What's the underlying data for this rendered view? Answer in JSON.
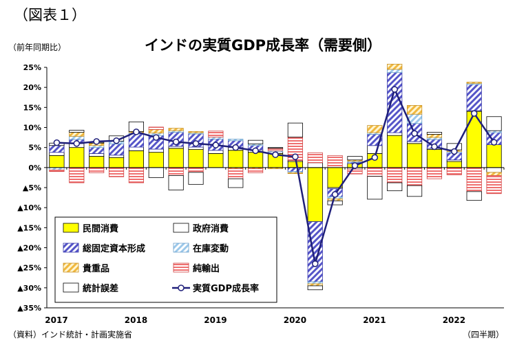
{
  "figure_label": "（図表１）",
  "chart_data": {
    "type": "bar",
    "stacked": true,
    "title": "インドの実質GDP成長率（需要側）",
    "ylabel": "（前年同期比）",
    "xunit": "（四半期）",
    "source": "（資料）インド統計・計画実施省",
    "ylim": [
      -35,
      25
    ],
    "yticks": [
      {
        "v": 25,
        "label": "25%"
      },
      {
        "v": 20,
        "label": "20%"
      },
      {
        "v": 15,
        "label": "15%"
      },
      {
        "v": 10,
        "label": "10%"
      },
      {
        "v": 5,
        "label": "5%"
      },
      {
        "v": 0,
        "label": "0%"
      },
      {
        "v": -5,
        "label": "▲5%"
      },
      {
        "v": -10,
        "label": "▲10%"
      },
      {
        "v": -15,
        "label": "▲15%"
      },
      {
        "v": -20,
        "label": "▲20%"
      },
      {
        "v": -25,
        "label": "▲25%"
      },
      {
        "v": -30,
        "label": "▲30%"
      },
      {
        "v": -35,
        "label": "▲35%"
      }
    ],
    "years": [
      {
        "label": "2017",
        "q": 0
      },
      {
        "label": "2018",
        "q": 4
      },
      {
        "label": "2019",
        "q": 8
      },
      {
        "label": "2020",
        "q": 12
      },
      {
        "label": "2021",
        "q": 16
      },
      {
        "label": "2022",
        "q": 20
      }
    ],
    "quarters": [
      "2017Q1",
      "2017Q2",
      "2017Q3",
      "2017Q4",
      "2018Q1",
      "2018Q2",
      "2018Q3",
      "2018Q4",
      "2019Q1",
      "2019Q2",
      "2019Q3",
      "2019Q4",
      "2020Q1",
      "2020Q2",
      "2020Q3",
      "2020Q4",
      "2021Q1",
      "2021Q2",
      "2021Q3",
      "2021Q4",
      "2022Q1",
      "2022Q2",
      "2022Q3"
    ],
    "series": [
      {
        "name": "民間消費",
        "key": "pc",
        "color": "#ffff00",
        "values": [
          3.0,
          5.0,
          2.8,
          2.5,
          4.2,
          3.8,
          4.8,
          4.5,
          3.5,
          4.3,
          3.8,
          3.5,
          1.5,
          -13.5,
          -5.0,
          1.0,
          3.5,
          8.0,
          6.0,
          4.5,
          1.5,
          14.0,
          5.7
        ]
      },
      {
        "name": "政府消費",
        "key": "gc",
        "color": "#ffffff",
        "values": [
          0.8,
          1.0,
          0.7,
          0.6,
          0.9,
          0.8,
          0.5,
          0.6,
          0.8,
          0.7,
          0.6,
          0.4,
          0.3,
          1.2,
          -0.3,
          -0.4,
          2.0,
          0.7,
          0.5,
          0.3,
          0.4,
          0.2,
          -1.2
        ]
      },
      {
        "name": "総固定資本形成",
        "key": "gfcf",
        "color": "#6666cc",
        "values": [
          1.7,
          1.0,
          1.5,
          2.8,
          3.3,
          3.4,
          3.5,
          3.3,
          2.8,
          1.7,
          1.1,
          0.0,
          -1.0,
          -15.0,
          -2.0,
          0.3,
          2.8,
          15.0,
          4.5,
          2.2,
          1.8,
          6.5,
          3.0
        ]
      },
      {
        "name": "在庫変動",
        "key": "inv",
        "color": "#b8d8f0",
        "values": [
          -0.6,
          0.8,
          0.5,
          0.7,
          0.3,
          0.6,
          0.4,
          0.3,
          0.5,
          0.4,
          0.4,
          0.3,
          -0.3,
          -0.5,
          -0.5,
          0.3,
          0.4,
          0.8,
          2.3,
          0.5,
          0.3,
          0.3,
          0.5
        ]
      },
      {
        "name": "貴重品",
        "key": "val",
        "color": "#f5c660",
        "values": [
          0.0,
          1.0,
          0.6,
          0.0,
          0.3,
          0.9,
          0.6,
          0.3,
          0.0,
          -0.3,
          -0.3,
          -0.3,
          -0.2,
          -0.5,
          -0.5,
          0.3,
          1.8,
          1.3,
          2.2,
          0.8,
          0.4,
          0.3,
          -0.8
        ]
      },
      {
        "name": "純輸出",
        "key": "nx",
        "color": "#f08080",
        "values": [
          -0.4,
          -3.8,
          -1.3,
          -2.3,
          -3.8,
          0.6,
          -2.0,
          -1.2,
          1.5,
          -2.5,
          -1.0,
          0.6,
          5.8,
          2.5,
          3.0,
          -1.2,
          -2.2,
          -3.8,
          -4.5,
          -2.8,
          -1.8,
          -6.0,
          -4.5
        ]
      },
      {
        "name": "統計誤差",
        "key": "disc",
        "color": "#ffffff",
        "values": [
          0.6,
          0.5,
          0.2,
          1.3,
          2.4,
          -2.5,
          -3.6,
          -3.0,
          0.0,
          -2.2,
          0.9,
          0.2,
          3.5,
          -1.0,
          -1.0,
          0.9,
          -5.7,
          -2.0,
          -2.7,
          0.5,
          1.6,
          -2.2,
          3.5
        ]
      }
    ],
    "line": {
      "name": "実質GDP成長率",
      "key": "gdp",
      "color": "#1f1f7a",
      "values": [
        6.2,
        6.0,
        6.5,
        6.7,
        8.9,
        7.5,
        6.4,
        6.0,
        5.6,
        5.0,
        4.2,
        3.2,
        2.7,
        -24.0,
        -6.7,
        0.5,
        2.5,
        19.5,
        8.5,
        5.2,
        4.0,
        13.5,
        6.3
      ]
    },
    "legend": {
      "placement": "bottom-left",
      "items": [
        {
          "key": "pc",
          "label": "民間消費"
        },
        {
          "key": "gc",
          "label": "政府消費"
        },
        {
          "key": "gfcf",
          "label": "総固定資本形成"
        },
        {
          "key": "inv",
          "label": "在庫変動"
        },
        {
          "key": "val",
          "label": "貴重品"
        },
        {
          "key": "nx",
          "label": "純輸出"
        },
        {
          "key": "disc",
          "label": "統計誤差"
        },
        {
          "key": "gdp",
          "label": "実質GDP成長率"
        }
      ]
    }
  }
}
